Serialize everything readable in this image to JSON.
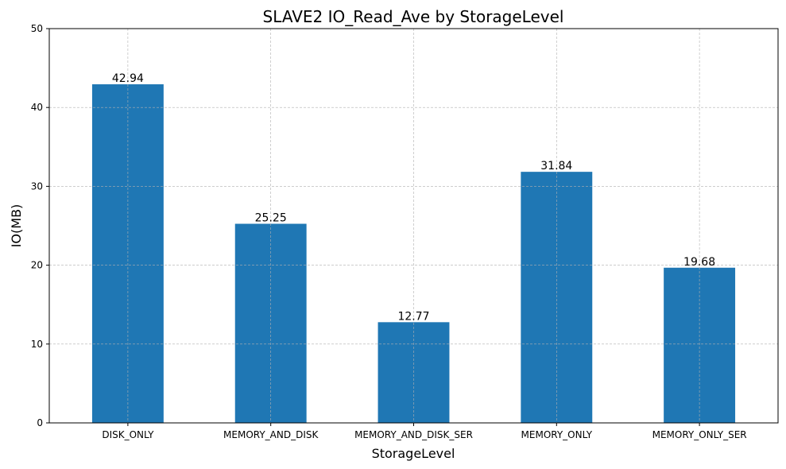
{
  "chart_data": {
    "type": "bar",
    "title": "SLAVE2 IO_Read_Ave by StorageLevel",
    "xlabel": "StorageLevel",
    "ylabel": "IO(MB)",
    "categories": [
      "DISK_ONLY",
      "MEMORY_AND_DISK",
      "MEMORY_AND_DISK_SER",
      "MEMORY_ONLY",
      "MEMORY_ONLY_SER"
    ],
    "values": [
      42.94,
      25.25,
      12.77,
      31.84,
      19.68
    ],
    "value_labels": [
      "42.94",
      "25.25",
      "12.77",
      "31.84",
      "19.68"
    ],
    "ylim": [
      0,
      50
    ],
    "yticks": [
      0,
      10,
      20,
      30,
      40,
      50
    ],
    "grid": true,
    "bar_color": "#1f77b4"
  }
}
